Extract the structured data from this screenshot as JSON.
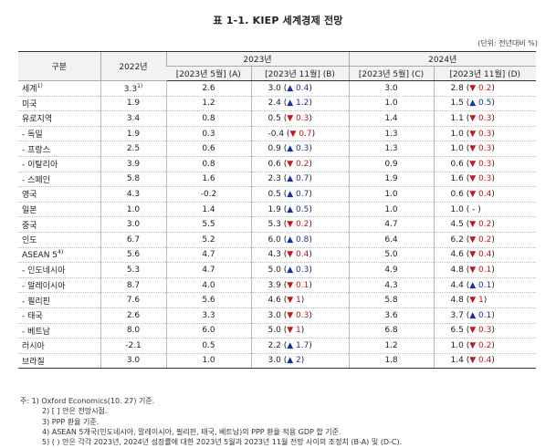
{
  "title": "표 1-1. KIEP 세계경제 전망",
  "unit": "(단위: 전년대비 %)",
  "header": {
    "col_region": "구분",
    "col_2022": "2022년",
    "group_2023": "2023년",
    "group_2024": "2024년",
    "sub_a": "[2023년 5월] (A)",
    "sub_b": "[2023년 11월] (B)",
    "sub_c": "[2023년 5월] (C)",
    "sub_d": "[2023년 11월] (D)"
  },
  "rows": [
    {
      "label": "세계",
      "sup": "1)",
      "y2022": "3.3",
      "y2022_sup": "1)",
      "a": "2.6",
      "b": "3.0",
      "b_dir": "up",
      "b_arrow": "▲",
      "b_chg": "0.4",
      "c": "3.0",
      "d": "2.8",
      "d_dir": "dn",
      "d_arrow": "▼",
      "d_chg": "0.2"
    },
    {
      "label": "미국",
      "y2022": "1.9",
      "a": "1.2",
      "b": "2.4",
      "b_dir": "up",
      "b_arrow": "▲",
      "b_chg": "1.2",
      "c": "1.0",
      "d": "1.5",
      "d_dir": "up",
      "d_arrow": "▲",
      "d_chg": "0.5"
    },
    {
      "label": "유로지역",
      "y2022": "3.4",
      "a": "0.8",
      "b": "0.5",
      "b_dir": "dn",
      "b_arrow": "▼",
      "b_chg": "0.3",
      "c": "1.4",
      "d": "1.1",
      "d_dir": "dn",
      "d_arrow": "▼",
      "d_chg": "0.3"
    },
    {
      "label": "- 독일",
      "y2022": "1.9",
      "a": "0.3",
      "b": "-0.4",
      "b_dir": "dn",
      "b_arrow": "▼",
      "b_chg": "0.7",
      "c": "1.3",
      "d": "1.0",
      "d_dir": "dn",
      "d_arrow": "▼",
      "d_chg": "0.3"
    },
    {
      "label": "- 프랑스",
      "y2022": "2.5",
      "a": "0.6",
      "b": "0.9",
      "b_dir": "up",
      "b_arrow": "▲",
      "b_chg": "0.3",
      "c": "1.3",
      "d": "1.0",
      "d_dir": "dn",
      "d_arrow": "▼",
      "d_chg": "0.3"
    },
    {
      "label": "- 이탈리아",
      "y2022": "3.9",
      "a": "0.8",
      "b": "0.6",
      "b_dir": "dn",
      "b_arrow": "▼",
      "b_chg": "0.2",
      "c": "0.9",
      "d": "0.6",
      "d_dir": "dn",
      "d_arrow": "▼",
      "d_chg": "0.3"
    },
    {
      "label": "- 스페인",
      "y2022": "5.8",
      "a": "1.6",
      "b": "2.3",
      "b_dir": "up",
      "b_arrow": "▲",
      "b_chg": "0.7",
      "c": "1.9",
      "d": "1.6",
      "d_dir": "dn",
      "d_arrow": "▼",
      "d_chg": "0.3"
    },
    {
      "label": "영국",
      "y2022": "4.3",
      "a": "-0.2",
      "b": "0.5",
      "b_dir": "up",
      "b_arrow": "▲",
      "b_chg": "0.7",
      "c": "1.0",
      "d": "0.6",
      "d_dir": "dn",
      "d_arrow": "▼",
      "d_chg": "0.4"
    },
    {
      "label": "일본",
      "y2022": "1.0",
      "a": "1.4",
      "b": "1.9",
      "b_dir": "up",
      "b_arrow": "▲",
      "b_chg": "0.5",
      "c": "1.0",
      "d": "1.0",
      "d_dir": "nc",
      "d_arrow": "",
      "d_chg": "-"
    },
    {
      "label": "중국",
      "y2022": "3.0",
      "a": "5.5",
      "b": "5.3",
      "b_dir": "dn",
      "b_arrow": "▼",
      "b_chg": "0.2",
      "c": "4.7",
      "d": "4.5",
      "d_dir": "dn",
      "d_arrow": "▼",
      "d_chg": "0.2"
    },
    {
      "label": "인도",
      "y2022": "6.7",
      "a": "5.2",
      "b": "6.0",
      "b_dir": "up",
      "b_arrow": "▲",
      "b_chg": "0.8",
      "c": "6.4",
      "d": "6.2",
      "d_dir": "dn",
      "d_arrow": "▼",
      "d_chg": "0.2"
    },
    {
      "label": "ASEAN 5",
      "sup": "4)",
      "y2022": "5.6",
      "a": "4.7",
      "b": "4.3",
      "b_dir": "dn",
      "b_arrow": "▼",
      "b_chg": "0.4",
      "c": "5.0",
      "d": "4.6",
      "d_dir": "dn",
      "d_arrow": "▼",
      "d_chg": "0.4"
    },
    {
      "label": "- 인도네시아",
      "y2022": "5.3",
      "a": "4.7",
      "b": "5.0",
      "b_dir": "up",
      "b_arrow": "▲",
      "b_chg": "0.3",
      "c": "4.9",
      "d": "4.8",
      "d_dir": "dn",
      "d_arrow": "▼",
      "d_chg": "0.1"
    },
    {
      "label": "- 말레이시아",
      "y2022": "8.7",
      "a": "4.0",
      "b": "3.9",
      "b_dir": "dn",
      "b_arrow": "▼",
      "b_chg": "0.1",
      "c": "4.3",
      "d": "4.4",
      "d_dir": "up",
      "d_arrow": "▲",
      "d_chg": "0.1"
    },
    {
      "label": "- 필리핀",
      "y2022": "7.6",
      "a": "5.6",
      "b": "4.6",
      "b_dir": "dn",
      "b_arrow": "▼",
      "b_chg": "1",
      "c": "5.8",
      "d": "4.8",
      "d_dir": "dn",
      "d_arrow": "▼",
      "d_chg": "1"
    },
    {
      "label": "- 태국",
      "y2022": "2.6",
      "a": "3.3",
      "b": "3.0",
      "b_dir": "dn",
      "b_arrow": "▼",
      "b_chg": "0.3",
      "c": "3.6",
      "d": "3.7",
      "d_dir": "up",
      "d_arrow": "▲",
      "d_chg": "0.1"
    },
    {
      "label": "- 베트남",
      "y2022": "8.0",
      "a": "6.0",
      "b": "5.0",
      "b_dir": "dn",
      "b_arrow": "▼",
      "b_chg": "1",
      "c": "6.8",
      "d": "6.5",
      "d_dir": "dn",
      "d_arrow": "▼",
      "d_chg": "0.3"
    },
    {
      "label": "러시아",
      "y2022": "-2.1",
      "a": "0.5",
      "b": "2.2",
      "b_dir": "up",
      "b_arrow": "▲",
      "b_chg": "1.7",
      "c": "1.2",
      "d": "1.0",
      "d_dir": "dn",
      "d_arrow": "▼",
      "d_chg": "0.2"
    },
    {
      "label": "브라질",
      "y2022": "3.0",
      "a": "1.0",
      "b": "3.0",
      "b_dir": "up",
      "b_arrow": "▲",
      "b_chg": "2",
      "c": "1.8",
      "d": "1.4",
      "d_dir": "dn",
      "d_arrow": "▼",
      "d_chg": "0.4"
    }
  ],
  "notes": [
    "주: 1) Oxford Economics(10. 27) 기준.",
    "2) [ ] 안은 전망시점.",
    "3) PPP 환율 기준.",
    "4) ASEAN 5개국(인도네시아, 말레이시아, 필리핀, 태국, 베트남)의 PPP 환율 적용 GDP 합 기준.",
    "5) ( ) 안은 각각 2023년, 2024년 성장률에 대한 2023년 5월과 2023년 11월 전망 사이의 조정치 (B-A) 및 (D-C)."
  ]
}
